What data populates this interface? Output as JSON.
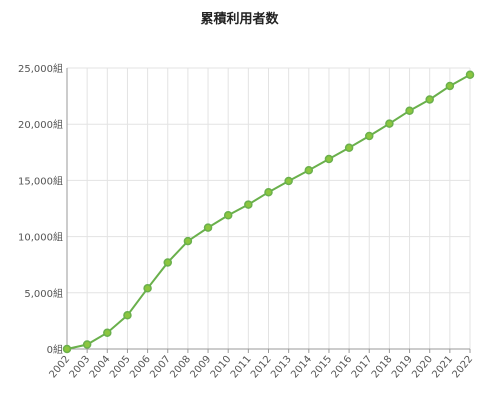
{
  "chart_data": {
    "type": "line",
    "title": "累積利用者数",
    "x": [
      "2002",
      "2003",
      "2004",
      "2005",
      "2006",
      "2007",
      "2008",
      "2009",
      "2010",
      "2011",
      "2012",
      "2013",
      "2014",
      "2015",
      "2016",
      "2017",
      "2018",
      "2019",
      "2020",
      "2021",
      "2022"
    ],
    "series": [
      {
        "values": [
          0,
          400,
          1450,
          3000,
          5400,
          7700,
          9600,
          10800,
          11900,
          12850,
          13950,
          14950,
          15900,
          16900,
          17900,
          18950,
          20050,
          21200,
          22200,
          23400,
          24400
        ]
      }
    ],
    "y_ticks": [
      "0組",
      "5,000組",
      "10,000組",
      "15,000組",
      "20,000組",
      "25,000組"
    ],
    "ylim": [
      0,
      25000
    ],
    "line_color": "#6ab04c",
    "marker_fill": "#8cc63f",
    "grid": true
  }
}
